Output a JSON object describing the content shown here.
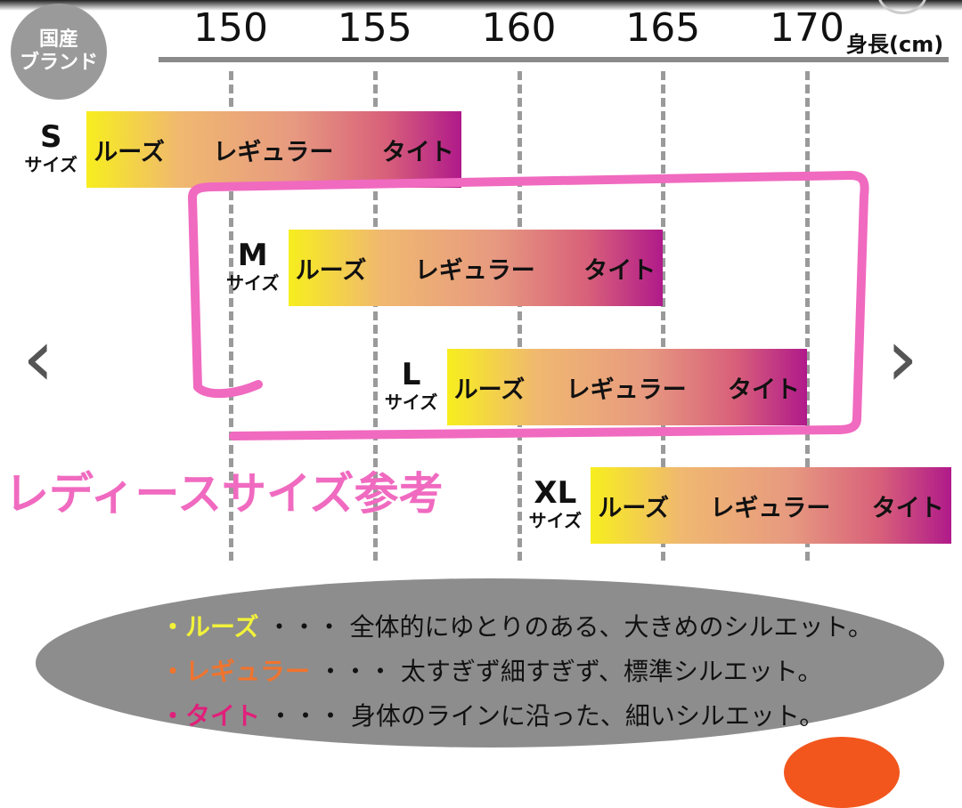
{
  "brand_badge": {
    "line1": "国産",
    "line2": "ブランド"
  },
  "ladies_note": "レディースサイズ参考",
  "nav": {
    "prev": "‹",
    "next": "›"
  },
  "chart_data": {
    "type": "range-bar",
    "xlabel": "身長(cm)",
    "ticks": [
      "150",
      "155",
      "160",
      "165",
      "170"
    ],
    "tick_values": [
      150,
      155,
      160,
      165,
      170
    ],
    "xlim": [
      145,
      175
    ],
    "grid": true,
    "bar_fit_labels": [
      "ルーズ",
      "レギュラー",
      "タイト"
    ],
    "gradient_colors": [
      "#f7ee1e",
      "#e79a80",
      "#b01a8a"
    ],
    "sizes": [
      {
        "size": "S",
        "suffix": "サイズ",
        "min": 145,
        "max": 158
      },
      {
        "size": "M",
        "suffix": "サイズ",
        "min": 152,
        "max": 165
      },
      {
        "size": "L",
        "suffix": "サイズ",
        "min": 157.5,
        "max": 170
      },
      {
        "size": "XL",
        "suffix": "サイズ",
        "min": 162.5,
        "max": 175
      }
    ],
    "highlighted_sizes": [
      "M",
      "L"
    ],
    "highlight_color": "#f06ac0"
  },
  "legend": [
    {
      "term": "ルーズ",
      "sep": "・・・",
      "desc": "全体的にゆとりのある、大きめのシルエット。",
      "color": "#f2f23a"
    },
    {
      "term": "レギュラー",
      "sep": "・・・",
      "desc": "太すぎず細すぎず、標準シルエット。",
      "color": "#f0742e"
    },
    {
      "term": "タイト",
      "sep": "・・・",
      "desc": "身体のラインに沿った、細いシルエット。",
      "color": "#e0207a"
    }
  ]
}
